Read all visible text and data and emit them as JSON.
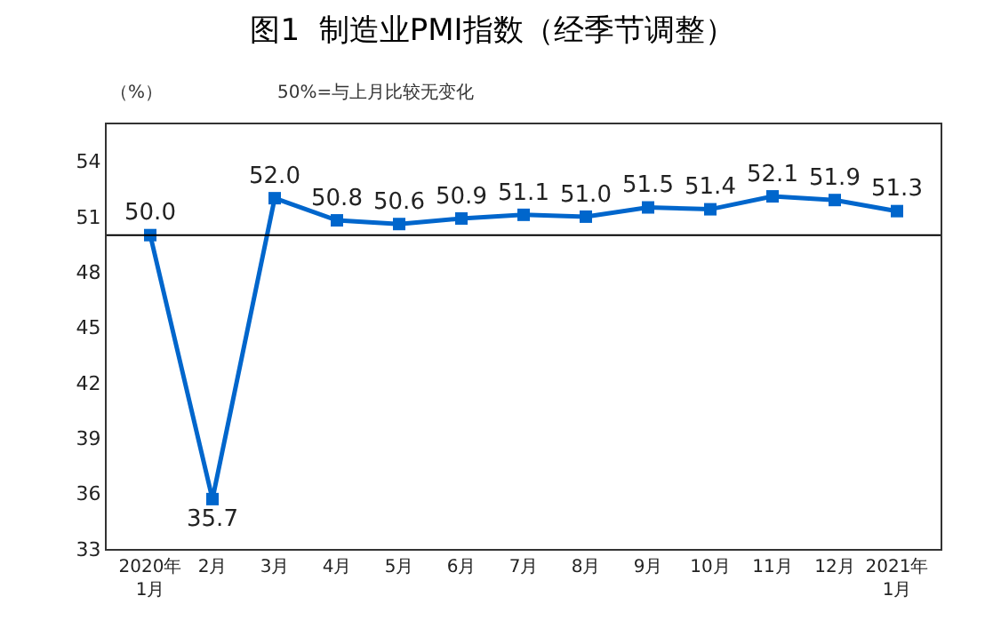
{
  "chart_data": {
    "type": "line",
    "title": "图1  制造业PMI指数（经季节调整）",
    "annotations": [
      "（%）",
      "50%=与上月比较无变化"
    ],
    "categories": [
      "2020年\n1月",
      "2月",
      "3月",
      "4月",
      "5月",
      "6月",
      "7月",
      "8月",
      "9月",
      "10月",
      "11月",
      "12月",
      "2021年\n1月"
    ],
    "series": [
      {
        "color": "#0066cc",
        "values": [
          50.0,
          35.7,
          52.0,
          50.8,
          50.6,
          50.9,
          51.1,
          51.0,
          51.5,
          51.4,
          52.1,
          51.9,
          51.3
        ],
        "value_labels": [
          "50.0",
          "35.7",
          "52.0",
          "50.8",
          "50.6",
          "50.9",
          "51.1",
          "51.0",
          "51.5",
          "51.4",
          "52.1",
          "51.9",
          "51.3"
        ]
      }
    ],
    "ylim": [
      33,
      56
    ],
    "yticks": [
      33,
      36,
      39,
      42,
      45,
      48,
      51,
      54
    ],
    "ref_lines": [
      {
        "axis": "y",
        "value": 50,
        "color": "#000000"
      }
    ],
    "marker": "square",
    "line_style": "solid"
  }
}
